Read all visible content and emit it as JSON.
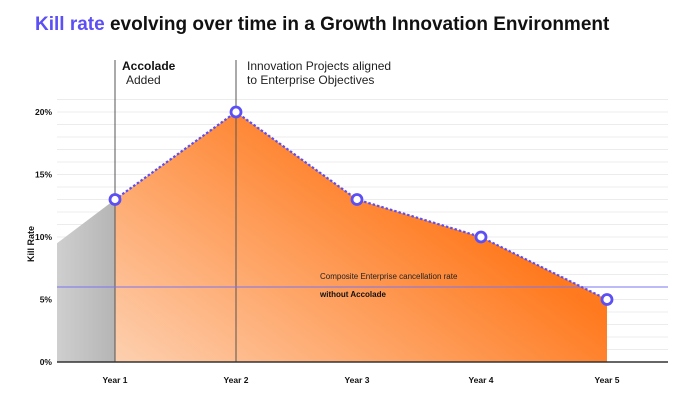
{
  "chart_data": {
    "type": "area",
    "title_highlight": "Kill rate",
    "title_rest": " evolving over time in a Growth Innovation Environment",
    "ylabel": "Kill Rate",
    "xlabel": "",
    "categories": [
      "Year 1",
      "Year 2",
      "Year 3",
      "Year 4",
      "Year 5"
    ],
    "values": [
      13,
      20,
      13,
      10,
      5
    ],
    "pre_period_start_value": 9.5,
    "ylim": [
      0,
      20
    ],
    "yticks": [
      0,
      5,
      10,
      15,
      20
    ],
    "ytick_labels": [
      "0%",
      "5%",
      "10%",
      "15%",
      "20%"
    ],
    "grid": true,
    "reference_line": {
      "value": 6,
      "label": "Composite Enterprise cancellation rate",
      "label_bold": "without Accolade"
    },
    "annotations": [
      {
        "at": "Year 1",
        "bold": "Accolade",
        "text": "Added"
      },
      {
        "at": "Year 2",
        "bold": "",
        "text": "Innovation Projects aligned\nto Enterprise Objectives"
      }
    ],
    "colors": {
      "line": "#5b4ff5",
      "fill_start": "#fdd0b0",
      "fill_end": "#ff7a1f",
      "pre": "#bbbbbb",
      "ref": "#7b74f0"
    }
  }
}
